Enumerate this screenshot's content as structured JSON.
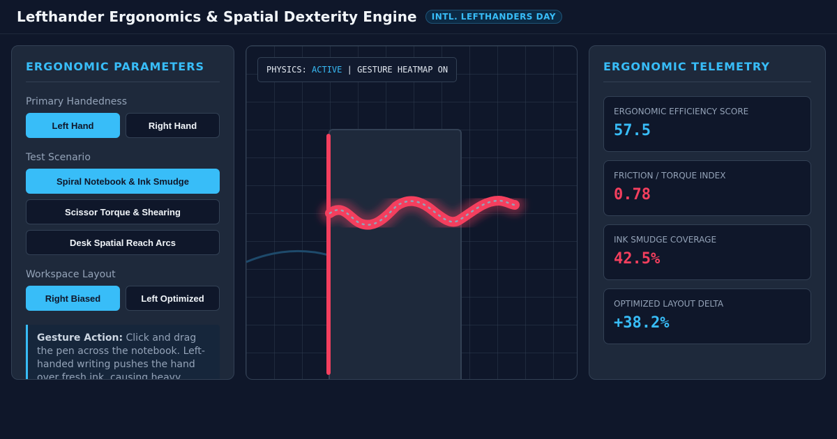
{
  "header": {
    "title": "Lefthander Ergonomics & Spatial Dexterity Engine",
    "badge": "INTL. LEFTHANDERS DAY"
  },
  "left_panel": {
    "heading": "ERGONOMIC PARAMETERS",
    "handedness": {
      "label": "Primary Handedness",
      "options": [
        "Left Hand",
        "Right Hand"
      ],
      "selected": "Left Hand"
    },
    "scenario": {
      "label": "Test Scenario",
      "options": [
        "Spiral Notebook & Ink Smudge",
        "Scissor Torque & Shearing",
        "Desk Spatial Reach Arcs"
      ],
      "selected": "Spiral Notebook & Ink Smudge"
    },
    "layout": {
      "label": "Workspace Layout",
      "options": [
        "Right Biased",
        "Left Optimized"
      ],
      "selected": "Right Biased"
    },
    "info": {
      "title": "Gesture Action:",
      "text": "Click and drag the pen across the notebook. Left-handed writing pushes the hand over fresh ink, causing heavy"
    }
  },
  "canvas": {
    "status_prefix": "PHYSICS: ",
    "status_state": "ACTIVE",
    "status_suffix": " | GESTURE HEATMAP ON",
    "colors": {
      "ink": "#f43f5e",
      "accent": "#38bdf8"
    }
  },
  "right_panel": {
    "heading": "ERGONOMIC TELEMETRY",
    "metrics": [
      {
        "label": "ERGONOMIC EFFICIENCY SCORE",
        "value": "57.5",
        "color": "#38bdf8"
      },
      {
        "label": "FRICTION / TORQUE INDEX",
        "value": "0.78",
        "color": "#f43f5e"
      },
      {
        "label": "INK SMUDGE COVERAGE",
        "value": "42.5%",
        "color": "#f43f5e"
      },
      {
        "label": "OPTIMIZED LAYOUT DELTA",
        "value": "+38.2%",
        "color": "#38bdf8"
      }
    ]
  }
}
